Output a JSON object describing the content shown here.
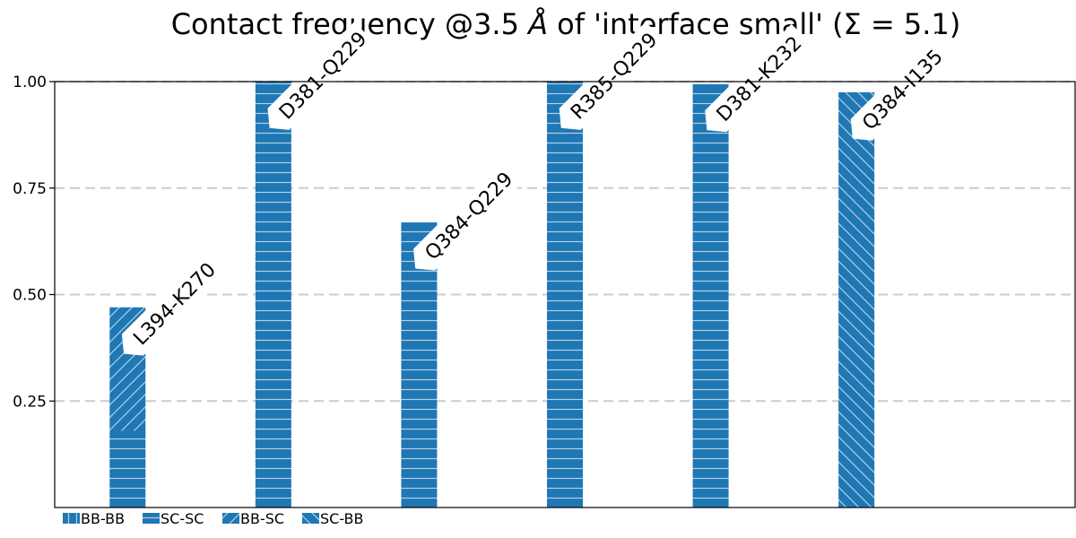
{
  "chart_data": {
    "type": "bar",
    "title": "Contact frequency @3.5 Å of 'interface small' (Σ = 5.1)",
    "title_parts": {
      "before": "Contact frequency @3.5 ",
      "unit": "Å",
      "after": " of 'interface small' (Σ = 5.1)"
    },
    "xlabel": "",
    "ylabel": "",
    "ylim": [
      0,
      1.0
    ],
    "xlim": [
      -0.5,
      6.5
    ],
    "yticks": [
      "0.25",
      "0.50",
      "0.75",
      "1.00"
    ],
    "grid": "horizontal dashed",
    "legend_position": "bottom-left",
    "bar_color": "#1f77b4",
    "categories": [
      "L394-K270",
      "D381-Q229",
      "Q384-Q229",
      "R385-Q229",
      "D381-K232",
      "Q384-I135"
    ],
    "series": [
      {
        "name": "BB-BB",
        "hatch": "vertical",
        "values": [
          0,
          0,
          0,
          0,
          0,
          0
        ]
      },
      {
        "name": "SC-SC",
        "hatch": "horizontal",
        "values": [
          0.18,
          1.0,
          0.67,
          1.0,
          0.995,
          0
        ]
      },
      {
        "name": "BB-SC",
        "hatch": "forward-diagonal",
        "values": [
          0.29,
          0,
          0,
          0,
          0,
          0
        ]
      },
      {
        "name": "SC-BB",
        "hatch": "back-diagonal",
        "values": [
          0,
          0,
          0,
          0,
          0,
          0.975
        ]
      }
    ]
  }
}
